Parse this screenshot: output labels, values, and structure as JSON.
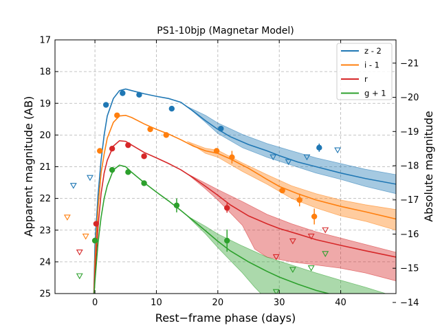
{
  "chart_data": {
    "type": "line",
    "title": "PS1-10bjp (Magnetar Model)",
    "xlabel": "Rest−frame phase (days)",
    "ylabel": "Apparent magnitude (AB)",
    "ylabel_right": "Absolute magnitude",
    "xlim": [
      -6.5,
      49
    ],
    "ylim": [
      25,
      17
    ],
    "right_ylim": [
      -14.26,
      -21.68
    ],
    "x_ticks": [
      0,
      10,
      20,
      30,
      40
    ],
    "y_ticks": [
      17,
      18,
      19,
      20,
      21,
      22,
      23,
      24,
      25
    ],
    "right_ticks": [
      -21,
      -20,
      -19,
      -18,
      -17,
      -16,
      -15,
      -14
    ],
    "grid": true,
    "legend_position": "top-right",
    "series": [
      {
        "name": "z - 2",
        "color": "#1f77b4",
        "model": [
          [
            -0.2,
            25.2
          ],
          [
            0,
            23.5
          ],
          [
            0.5,
            21.9
          ],
          [
            1,
            20.8
          ],
          [
            1.5,
            20.0
          ],
          [
            2,
            19.4
          ],
          [
            3,
            18.85
          ],
          [
            4,
            18.6
          ],
          [
            5,
            18.55
          ],
          [
            6,
            18.6
          ],
          [
            8,
            18.7
          ],
          [
            10,
            18.78
          ],
          [
            12,
            18.85
          ],
          [
            14,
            18.97
          ],
          [
            16,
            19.25
          ],
          [
            18,
            19.55
          ],
          [
            20,
            19.82
          ],
          [
            22,
            20.05
          ],
          [
            25,
            20.3
          ],
          [
            28,
            20.5
          ],
          [
            30,
            20.65
          ],
          [
            33,
            20.85
          ],
          [
            36,
            21.0
          ],
          [
            40,
            21.2
          ],
          [
            44,
            21.37
          ],
          [
            49,
            21.55
          ]
        ],
        "band_upper": [
          [
            15,
            19.1
          ],
          [
            18,
            19.38
          ],
          [
            20,
            19.62
          ],
          [
            24,
            19.98
          ],
          [
            28,
            20.27
          ],
          [
            32,
            20.5
          ],
          [
            36,
            20.72
          ],
          [
            40,
            20.9
          ],
          [
            44,
            21.08
          ],
          [
            49,
            21.25
          ]
        ],
        "band_lower": [
          [
            15,
            19.1
          ],
          [
            18,
            19.6
          ],
          [
            20,
            19.95
          ],
          [
            24,
            20.4
          ],
          [
            28,
            20.7
          ],
          [
            32,
            20.95
          ],
          [
            36,
            21.2
          ],
          [
            40,
            21.4
          ],
          [
            44,
            21.62
          ],
          [
            49,
            21.85
          ]
        ],
        "points": [
          [
            1.8,
            19.05,
            0
          ],
          [
            4.5,
            18.68,
            0
          ],
          [
            7.2,
            18.73,
            0
          ],
          [
            12.5,
            19.17,
            0
          ],
          [
            20.5,
            19.8,
            0
          ],
          [
            36.5,
            20.4,
            0.13
          ]
        ],
        "upper_limits": [
          [
            -3.5,
            21.6
          ],
          [
            -0.8,
            21.35
          ],
          [
            29,
            20.7
          ],
          [
            31.5,
            20.85
          ],
          [
            34.5,
            20.7
          ],
          [
            39.5,
            20.48
          ]
        ]
      },
      {
        "name": "i - 1",
        "color": "#ff7f0e",
        "model": [
          [
            -0.2,
            25.2
          ],
          [
            0,
            24.0
          ],
          [
            0.5,
            22.3
          ],
          [
            1,
            21.2
          ],
          [
            1.5,
            20.6
          ],
          [
            2,
            20.1
          ],
          [
            3,
            19.6
          ],
          [
            4,
            19.4
          ],
          [
            5,
            19.38
          ],
          [
            6,
            19.45
          ],
          [
            8,
            19.65
          ],
          [
            10,
            19.82
          ],
          [
            12,
            19.97
          ],
          [
            14,
            20.15
          ],
          [
            16,
            20.35
          ],
          [
            18,
            20.5
          ],
          [
            20,
            20.58
          ],
          [
            22,
            20.75
          ],
          [
            25,
            21.05
          ],
          [
            28,
            21.4
          ],
          [
            30,
            21.62
          ],
          [
            33,
            21.85
          ],
          [
            36,
            22.05
          ],
          [
            40,
            22.25
          ],
          [
            44,
            22.42
          ],
          [
            49,
            22.65
          ]
        ],
        "band_upper": [
          [
            15,
            20.2
          ],
          [
            18,
            20.42
          ],
          [
            20,
            20.48
          ],
          [
            24,
            20.88
          ],
          [
            28,
            21.25
          ],
          [
            32,
            21.6
          ],
          [
            36,
            21.85
          ],
          [
            40,
            22.05
          ],
          [
            44,
            22.2
          ],
          [
            49,
            22.35
          ]
        ],
        "band_lower": [
          [
            15,
            20.2
          ],
          [
            18,
            20.58
          ],
          [
            20,
            20.7
          ],
          [
            24,
            21.15
          ],
          [
            28,
            21.55
          ],
          [
            32,
            22.0
          ],
          [
            36,
            22.3
          ],
          [
            40,
            22.55
          ],
          [
            44,
            22.72
          ],
          [
            49,
            23.0
          ]
        ],
        "points": [
          [
            0.8,
            20.5,
            0
          ],
          [
            3.6,
            19.38,
            0
          ],
          [
            9,
            19.82,
            0
          ],
          [
            11.6,
            20.0,
            0
          ],
          [
            19.8,
            20.5,
            0
          ],
          [
            22.3,
            20.7,
            0.2
          ],
          [
            30.5,
            21.75,
            0
          ],
          [
            33.3,
            22.05,
            0.2
          ],
          [
            35.7,
            22.57,
            0.25
          ]
        ],
        "upper_limits": [
          [
            -4.5,
            22.6
          ],
          [
            -1.5,
            23.2
          ]
        ]
      },
      {
        "name": "r",
        "color": "#d62728",
        "model": [
          [
            -0.2,
            25.2
          ],
          [
            0,
            24.3
          ],
          [
            0.5,
            22.9
          ],
          [
            1,
            21.85
          ],
          [
            1.5,
            21.2
          ],
          [
            2,
            20.8
          ],
          [
            3,
            20.35
          ],
          [
            4,
            20.18
          ],
          [
            5,
            20.2
          ],
          [
            6,
            20.32
          ],
          [
            8,
            20.55
          ],
          [
            10,
            20.72
          ],
          [
            12,
            20.9
          ],
          [
            14,
            21.1
          ],
          [
            16,
            21.35
          ],
          [
            18,
            21.62
          ],
          [
            20,
            21.9
          ],
          [
            22,
            22.2
          ],
          [
            25,
            22.55
          ],
          [
            28,
            22.8
          ],
          [
            30,
            22.95
          ],
          [
            33,
            23.12
          ],
          [
            36,
            23.3
          ],
          [
            40,
            23.48
          ],
          [
            44,
            23.65
          ],
          [
            49,
            23.85
          ]
        ],
        "band_upper": [
          [
            15,
            21.22
          ],
          [
            18,
            21.52
          ],
          [
            20,
            21.72
          ],
          [
            24,
            22.1
          ],
          [
            28,
            22.5
          ],
          [
            32,
            22.8
          ],
          [
            36,
            23.05
          ],
          [
            40,
            23.25
          ],
          [
            44,
            23.45
          ],
          [
            49,
            23.7
          ]
        ],
        "band_lower": [
          [
            15,
            21.22
          ],
          [
            18,
            21.7
          ],
          [
            20,
            22.05
          ],
          [
            24,
            22.85
          ],
          [
            26,
            23.6
          ],
          [
            28,
            23.85
          ],
          [
            32,
            24.0
          ],
          [
            36,
            24.1
          ],
          [
            40,
            24.2
          ],
          [
            44,
            24.35
          ],
          [
            49,
            24.6
          ]
        ],
        "points": [
          [
            0.2,
            22.8,
            0
          ],
          [
            2.8,
            20.43,
            0
          ],
          [
            5.4,
            20.32,
            0
          ],
          [
            8,
            20.67,
            0
          ],
          [
            21.5,
            22.3,
            0.15
          ]
        ],
        "upper_limits": [
          [
            -2.5,
            23.7
          ],
          [
            29.5,
            23.85
          ],
          [
            32.2,
            23.35
          ],
          [
            35.2,
            23.2
          ],
          [
            37.5,
            23.0
          ]
        ]
      },
      {
        "name": "g + 1",
        "color": "#2ca02c",
        "model": [
          [
            -0.2,
            25.2
          ],
          [
            0,
            24.6
          ],
          [
            0.5,
            23.4
          ],
          [
            1,
            22.6
          ],
          [
            1.5,
            22.0
          ],
          [
            2,
            21.6
          ],
          [
            3,
            21.1
          ],
          [
            4,
            20.95
          ],
          [
            5,
            21.0
          ],
          [
            6,
            21.18
          ],
          [
            8,
            21.5
          ],
          [
            10,
            21.8
          ],
          [
            12,
            22.08
          ],
          [
            14,
            22.38
          ],
          [
            16,
            22.7
          ],
          [
            18,
            23.02
          ],
          [
            20,
            23.35
          ],
          [
            22,
            23.65
          ],
          [
            25,
            24.0
          ],
          [
            28,
            24.3
          ],
          [
            30,
            24.48
          ],
          [
            33,
            24.7
          ],
          [
            36,
            24.9
          ],
          [
            40,
            25.1
          ],
          [
            49,
            25.5
          ]
        ],
        "band_upper": [
          [
            15,
            22.55
          ],
          [
            18,
            22.88
          ],
          [
            20,
            23.12
          ],
          [
            24,
            23.5
          ],
          [
            28,
            23.85
          ],
          [
            32,
            24.1
          ],
          [
            36,
            24.35
          ],
          [
            40,
            24.58
          ],
          [
            44,
            24.8
          ],
          [
            49,
            25.1
          ]
        ],
        "band_lower": [
          [
            15,
            22.55
          ],
          [
            18,
            23.12
          ],
          [
            20,
            23.55
          ],
          [
            22,
            23.95
          ],
          [
            24,
            24.35
          ],
          [
            26,
            24.8
          ],
          [
            28,
            25.2
          ],
          [
            30,
            25.6
          ]
        ],
        "points": [
          [
            0,
            23.33,
            0
          ],
          [
            2.8,
            21.1,
            0
          ],
          [
            5.4,
            21.17,
            0
          ],
          [
            8,
            21.52,
            0
          ],
          [
            13.3,
            22.22,
            0.22
          ],
          [
            21.5,
            23.33,
            0.35
          ]
        ],
        "upper_limits": [
          [
            -2.5,
            24.45
          ],
          [
            29.5,
            24.95
          ],
          [
            32.2,
            24.25
          ],
          [
            35.2,
            24.2
          ],
          [
            37.5,
            23.75
          ]
        ]
      }
    ]
  }
}
